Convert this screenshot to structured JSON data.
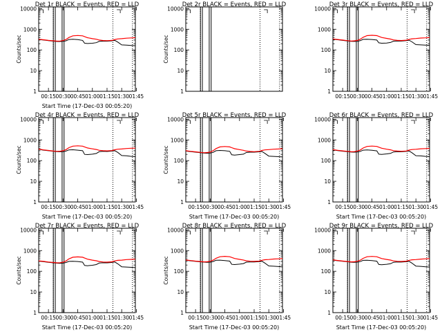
{
  "figure": {
    "background": "#ffffff",
    "events_color": "#000000",
    "lld_color": "#ff0000"
  },
  "chart_data": [
    {
      "type": "line",
      "title": "Det 1r BLACK = Events, RED = LLD",
      "xlabel": "Start Time (17-Dec-03 00:05:20)",
      "ylabel": "Counts/sec",
      "yscale": "log",
      "ylim": [
        1,
        12000
      ],
      "xlim_minutes": [
        5,
        104
      ],
      "xticks": [
        "00:15",
        "00:30",
        "00:45",
        "01:00",
        "01:15",
        "01:30",
        "01:45"
      ],
      "yticks": [
        "1",
        "10",
        "100",
        "1000",
        "10000"
      ],
      "x_minutes": [
        5,
        10,
        15,
        20,
        24,
        27,
        30,
        33,
        36,
        40,
        45,
        50,
        52,
        55,
        60,
        64,
        67,
        71,
        75,
        80,
        83,
        86,
        90,
        95,
        100,
        104
      ],
      "series": [
        {
          "name": "Events",
          "color": "#000000",
          "values": [
            320,
            300,
            280,
            265,
            255,
            255,
            260,
            275,
            320,
            330,
            315,
            290,
            210,
            205,
            210,
            225,
            260,
            265,
            265,
            275,
            290,
            240,
            175,
            170,
            165,
            160
          ]
        },
        {
          "name": "LLD",
          "color": "#ff0000",
          "values": [
            330,
            310,
            290,
            275,
            265,
            270,
            285,
            320,
            400,
            480,
            500,
            480,
            440,
            390,
            350,
            330,
            300,
            285,
            280,
            290,
            320,
            340,
            350,
            370,
            380,
            390
          ]
        }
      ],
      "vlines_solid": [
        20,
        22,
        29,
        31
      ],
      "vlines_dotted": [
        20,
        81,
        101
      ]
    },
    {
      "type": "line",
      "title": "Det 2r BLACK = Events, RED = LLD",
      "xlabel": "",
      "ylabel": "Counts/sec",
      "yscale": "log",
      "ylim": [
        1,
        12000
      ],
      "xlim_minutes": [
        5,
        104
      ],
      "xticks": [],
      "yticks": [
        "1",
        "10",
        "100",
        "1000",
        "10000"
      ],
      "x_minutes": [],
      "series": [],
      "vlines_solid": [
        20,
        22,
        29,
        31
      ],
      "vlines_dotted": [
        20,
        81,
        101
      ]
    },
    {
      "type": "line",
      "title": "Det 3r BLACK = Events, RED = LLD",
      "xlabel": "",
      "ylabel": "",
      "yscale": "log",
      "ylim": [
        1,
        12000
      ],
      "xlim_minutes": [
        5,
        104
      ],
      "xticks": [
        "00:15",
        "00:30",
        "00:45",
        "01:00",
        "01:15",
        "01:30",
        "01:45"
      ],
      "yticks": [
        "1",
        "10",
        "100",
        "1000",
        "10000"
      ],
      "x_minutes": [
        5,
        10,
        15,
        20,
        24,
        27,
        30,
        33,
        36,
        40,
        45,
        50,
        52,
        55,
        60,
        64,
        67,
        71,
        75,
        80,
        83,
        86,
        90,
        95,
        100,
        104
      ],
      "series": [
        {
          "name": "Events",
          "color": "#000000",
          "values": [
            330,
            310,
            290,
            270,
            260,
            258,
            262,
            280,
            325,
            330,
            320,
            300,
            220,
            210,
            215,
            230,
            265,
            270,
            268,
            280,
            295,
            245,
            180,
            175,
            170,
            165
          ]
        },
        {
          "name": "LLD",
          "color": "#ff0000",
          "values": [
            340,
            320,
            300,
            280,
            270,
            275,
            290,
            330,
            410,
            490,
            510,
            490,
            450,
            400,
            360,
            335,
            305,
            290,
            285,
            295,
            325,
            345,
            355,
            375,
            385,
            395
          ]
        }
      ],
      "vlines_solid": [
        20,
        22,
        29,
        31
      ],
      "vlines_dotted": [
        20,
        81,
        101
      ]
    },
    {
      "type": "line",
      "title": "Det 4r BLACK = Events, RED = LLD",
      "xlabel": "Start Time (17-Dec-03 00:05:20)",
      "ylabel": "Counts/sec",
      "yscale": "log",
      "ylim": [
        1,
        12000
      ],
      "xlim_minutes": [
        5,
        104
      ],
      "xticks": [
        "00:15",
        "00:30",
        "00:45",
        "01:00",
        "01:15",
        "01:30",
        "01:45"
      ],
      "yticks": [
        "1",
        "10",
        "100",
        "1000",
        "10000"
      ],
      "x_minutes": [
        5,
        10,
        15,
        20,
        24,
        27,
        30,
        33,
        36,
        40,
        45,
        50,
        52,
        55,
        60,
        64,
        67,
        71,
        75,
        80,
        83,
        86,
        90,
        95,
        100,
        104
      ],
      "series": [
        {
          "name": "Events",
          "color": "#000000",
          "values": [
            350,
            320,
            300,
            280,
            270,
            268,
            272,
            290,
            330,
            335,
            320,
            300,
            200,
            195,
            205,
            220,
            270,
            280,
            275,
            290,
            300,
            250,
            175,
            170,
            160,
            155
          ]
        },
        {
          "name": "LLD",
          "color": "#ff0000",
          "values": [
            360,
            330,
            310,
            290,
            280,
            285,
            300,
            340,
            420,
            500,
            520,
            500,
            460,
            410,
            370,
            345,
            315,
            300,
            295,
            305,
            335,
            355,
            365,
            385,
            395,
            400
          ]
        }
      ],
      "vlines_solid": [
        20,
        22,
        29,
        31
      ],
      "vlines_dotted": [
        20,
        81,
        101
      ]
    },
    {
      "type": "line",
      "title": "Det 5r BLACK = Events, RED = LLD",
      "xlabel": "Start Time (17-Dec-03 00:05:20)",
      "ylabel": "Counts/sec",
      "yscale": "log",
      "ylim": [
        1,
        12000
      ],
      "xlim_minutes": [
        5,
        104
      ],
      "xticks": [
        "00:15",
        "00:30",
        "00:45",
        "01:00",
        "01:15",
        "01:30",
        "01:45"
      ],
      "yticks": [
        "1",
        "10",
        "100",
        "1000",
        "10000"
      ],
      "x_minutes": [
        5,
        10,
        15,
        20,
        24,
        27,
        30,
        33,
        36,
        40,
        45,
        50,
        52,
        55,
        60,
        64,
        67,
        71,
        75,
        80,
        83,
        86,
        90,
        95,
        100,
        104
      ],
      "series": [
        {
          "name": "Events",
          "color": "#000000",
          "values": [
            290,
            270,
            255,
            240,
            230,
            228,
            232,
            250,
            300,
            310,
            300,
            280,
            190,
            185,
            195,
            205,
            245,
            255,
            255,
            265,
            275,
            225,
            165,
            160,
            155,
            150
          ]
        },
        {
          "name": "LLD",
          "color": "#ff0000",
          "values": [
            300,
            280,
            265,
            250,
            240,
            245,
            260,
            300,
            380,
            460,
            480,
            460,
            420,
            375,
            340,
            315,
            290,
            275,
            270,
            280,
            310,
            330,
            340,
            355,
            365,
            375
          ]
        }
      ],
      "vlines_solid": [
        20,
        22,
        29,
        31
      ],
      "vlines_dotted": [
        20,
        81,
        101
      ]
    },
    {
      "type": "line",
      "title": "Det 6r BLACK = Events, RED = LLD",
      "xlabel": "Start Time (17-Dec-03 00:05:20)",
      "ylabel": "",
      "yscale": "log",
      "ylim": [
        1,
        12000
      ],
      "xlim_minutes": [
        5,
        104
      ],
      "xticks": [
        "00:15",
        "00:30",
        "00:45",
        "01:00",
        "01:15",
        "01:30",
        "01:45"
      ],
      "yticks": [
        "1",
        "10",
        "100",
        "1000",
        "10000"
      ],
      "x_minutes": [
        5,
        10,
        15,
        20,
        24,
        27,
        30,
        33,
        36,
        40,
        45,
        50,
        52,
        55,
        60,
        64,
        67,
        71,
        75,
        80,
        83,
        86,
        90,
        95,
        100,
        104
      ],
      "series": [
        {
          "name": "Events",
          "color": "#000000",
          "values": [
            330,
            305,
            285,
            270,
            258,
            256,
            260,
            278,
            320,
            328,
            315,
            295,
            205,
            200,
            210,
            222,
            262,
            270,
            268,
            278,
            292,
            240,
            172,
            168,
            160,
            155
          ]
        },
        {
          "name": "LLD",
          "color": "#ff0000",
          "values": [
            340,
            315,
            295,
            280,
            268,
            272,
            288,
            325,
            405,
            485,
            505,
            485,
            445,
            395,
            355,
            332,
            302,
            288,
            282,
            292,
            322,
            342,
            352,
            372,
            382,
            390
          ]
        }
      ],
      "vlines_solid": [
        20,
        22,
        29,
        31
      ],
      "vlines_dotted": [
        20,
        81,
        101
      ]
    },
    {
      "type": "line",
      "title": "Det 7r BLACK = Events, RED = LLD",
      "xlabel": "Start Time (17-Dec-03 00:05:20)",
      "ylabel": "Counts/sec",
      "yscale": "log",
      "ylim": [
        1,
        12000
      ],
      "xlim_minutes": [
        5,
        104
      ],
      "xticks": [
        "00:15",
        "00:30",
        "00:45",
        "01:00",
        "01:15",
        "01:30",
        "01:45"
      ],
      "yticks": [
        "1",
        "10",
        "100",
        "1000",
        "10000"
      ],
      "x_minutes": [
        5,
        10,
        15,
        20,
        24,
        27,
        30,
        33,
        36,
        40,
        45,
        50,
        52,
        55,
        60,
        64,
        67,
        71,
        75,
        80,
        83,
        86,
        90,
        95,
        100,
        104
      ],
      "series": [
        {
          "name": "Events",
          "color": "#000000",
          "values": [
            310,
            290,
            270,
            255,
            245,
            243,
            248,
            265,
            300,
            305,
            295,
            275,
            190,
            185,
            195,
            210,
            250,
            258,
            256,
            266,
            280,
            230,
            165,
            160,
            155,
            150
          ]
        },
        {
          "name": "LLD",
          "color": "#ff0000",
          "values": [
            320,
            300,
            280,
            265,
            255,
            260,
            275,
            315,
            395,
            475,
            495,
            475,
            435,
            385,
            345,
            322,
            295,
            280,
            276,
            286,
            316,
            336,
            346,
            366,
            376,
            385
          ]
        }
      ],
      "vlines_solid": [
        20,
        22,
        29,
        31
      ],
      "vlines_dotted": [
        20,
        81,
        101
      ]
    },
    {
      "type": "line",
      "title": "Det 8r BLACK = Events, RED = LLD",
      "xlabel": "Start Time (17-Dec-03 00:05:20)",
      "ylabel": "Counts/sec",
      "yscale": "log",
      "ylim": [
        1,
        12000
      ],
      "xlim_minutes": [
        5,
        104
      ],
      "xticks": [
        "00:15",
        "00:30",
        "00:45",
        "01:00",
        "01:15",
        "01:30",
        "01:45"
      ],
      "yticks": [
        "1",
        "10",
        "100",
        "1000",
        "10000"
      ],
      "x_minutes": [
        5,
        10,
        15,
        20,
        24,
        27,
        30,
        33,
        36,
        40,
        45,
        50,
        52,
        55,
        60,
        64,
        67,
        71,
        75,
        80,
        83,
        86,
        90,
        95,
        100,
        104
      ],
      "series": [
        {
          "name": "Events",
          "color": "#000000",
          "values": [
            340,
            320,
            300,
            285,
            275,
            272,
            276,
            295,
            340,
            345,
            330,
            310,
            215,
            210,
            220,
            235,
            275,
            282,
            280,
            292,
            305,
            250,
            180,
            175,
            168,
            162
          ]
        },
        {
          "name": "LLD",
          "color": "#ff0000",
          "values": [
            350,
            330,
            310,
            295,
            285,
            290,
            305,
            345,
            425,
            505,
            525,
            505,
            465,
            415,
            375,
            350,
            320,
            305,
            300,
            310,
            340,
            360,
            370,
            390,
            400,
            410
          ]
        }
      ],
      "vlines_solid": [
        20,
        22,
        29,
        31
      ],
      "vlines_dotted": [
        20,
        81,
        101
      ]
    },
    {
      "type": "line",
      "title": "Det 9r BLACK = Events, RED = LLD",
      "xlabel": "Start Time (17-Dec-03 00:05:20)",
      "ylabel": "",
      "yscale": "log",
      "ylim": [
        1,
        12000
      ],
      "xlim_minutes": [
        5,
        104
      ],
      "xticks": [
        "00:15",
        "00:30",
        "00:45",
        "01:00",
        "01:15",
        "01:30",
        "01:45"
      ],
      "yticks": [
        "1",
        "10",
        "100",
        "1000",
        "10000"
      ],
      "x_minutes": [
        5,
        10,
        15,
        20,
        24,
        27,
        30,
        33,
        36,
        40,
        45,
        50,
        52,
        55,
        60,
        64,
        67,
        71,
        75,
        80,
        83,
        86,
        90,
        95,
        100,
        104
      ],
      "series": [
        {
          "name": "Events",
          "color": "#000000",
          "values": [
            345,
            322,
            302,
            286,
            274,
            270,
            275,
            294,
            338,
            342,
            328,
            308,
            212,
            208,
            218,
            232,
            272,
            280,
            278,
            290,
            302,
            248,
            178,
            172,
            165,
            160
          ]
        },
        {
          "name": "LLD",
          "color": "#ff0000",
          "values": [
            355,
            332,
            312,
            296,
            284,
            288,
            304,
            342,
            422,
            502,
            522,
            502,
            462,
            412,
            372,
            348,
            318,
            302,
            298,
            308,
            338,
            358,
            368,
            388,
            398,
            408
          ]
        }
      ],
      "vlines_solid": [
        20,
        22,
        29,
        31
      ],
      "vlines_dotted": [
        20,
        81,
        101
      ]
    }
  ]
}
